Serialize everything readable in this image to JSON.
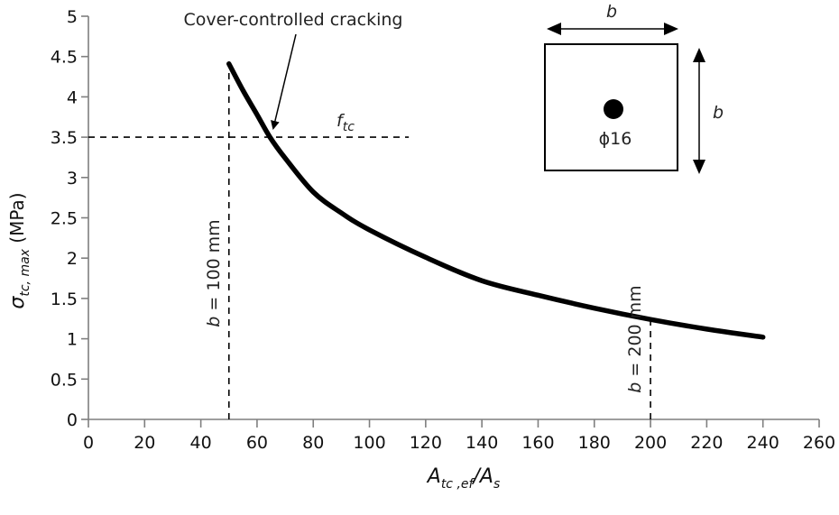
{
  "chart_data": {
    "type": "line",
    "title": "",
    "xlabel": "A_tc,ef / A_s",
    "xlabel_parts": {
      "main": "A",
      "sub1": "tc ,ef",
      "slash": "/",
      "main2": "A",
      "sub2": "s"
    },
    "ylabel": "σ_tc,max (MPa)",
    "ylabel_parts": {
      "sigma": "σ",
      "sub": "tc, max",
      "unit": " (MPa)"
    },
    "xlim": [
      0,
      260
    ],
    "ylim": [
      0,
      5
    ],
    "xticks": [
      0,
      20,
      40,
      60,
      80,
      100,
      120,
      140,
      160,
      180,
      200,
      220,
      240,
      260
    ],
    "yticks": [
      0,
      0.5,
      1,
      1.5,
      2,
      2.5,
      3,
      3.5,
      4,
      4.5,
      5
    ],
    "ytick_labels": [
      "0",
      "0.5",
      "1",
      "1.5",
      "2",
      "2.5",
      "3",
      "3.5",
      "4",
      "4.5",
      "5"
    ],
    "grid": false,
    "series": [
      {
        "name": "σ_tc,max",
        "color": "#000000",
        "x": [
          50,
          55,
          60,
          64.6,
          70,
          80,
          90,
          100,
          120,
          140,
          160,
          180,
          200,
          220,
          240
        ],
        "values": [
          4.41,
          4.08,
          3.78,
          3.5,
          3.24,
          2.82,
          2.56,
          2.35,
          2.01,
          1.72,
          1.54,
          1.38,
          1.24,
          1.12,
          1.02
        ]
      }
    ],
    "reference_lines": [
      {
        "type": "horizontal",
        "y": 3.5,
        "x_from": 0,
        "x_to": 114,
        "style": "dashed",
        "label": "f_tc"
      },
      {
        "type": "vertical",
        "x": 50,
        "y_from": 0,
        "y_to": 4.5,
        "style": "dashed",
        "label": "b = 100 mm"
      },
      {
        "type": "vertical",
        "x": 200,
        "y_from": 0,
        "y_to": 1.3,
        "style": "dashed",
        "label": "b = 200 mm"
      }
    ],
    "annotations": [
      {
        "text": "Cover-controlled cracking",
        "arrow_to": {
          "x": 64.6,
          "y": 3.5
        }
      },
      {
        "text": "f_tc",
        "parts": {
          "main": "f",
          "sub": "tc"
        }
      },
      {
        "text": "b = 100 mm",
        "parts": {
          "b": "b",
          "rest": " = 100 mm"
        }
      },
      {
        "text": "b = 200 mm",
        "parts": {
          "b": "b",
          "rest": " = 200 mm"
        }
      }
    ],
    "inset": {
      "description": "square cross-section b × b with single bar",
      "width_label": "b",
      "height_label": "b",
      "bar_label": "ϕ16"
    }
  }
}
